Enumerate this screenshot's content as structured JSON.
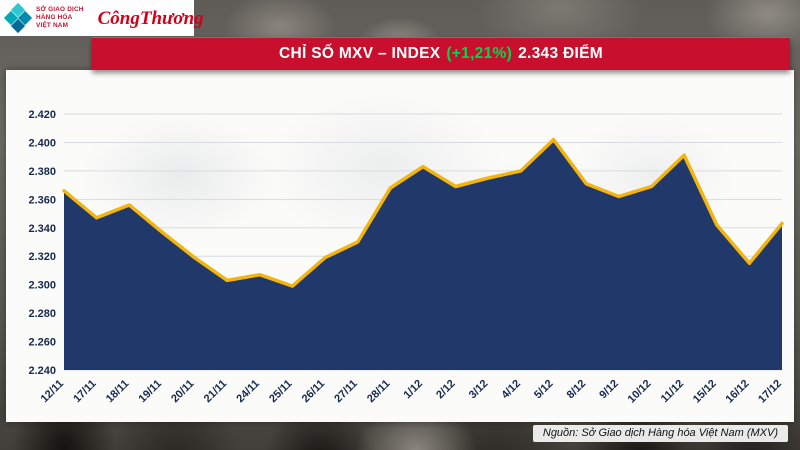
{
  "header": {
    "mxv_logo": {
      "lines": [
        "SỞ GIAO DỊCH",
        "HÀNG HÓA",
        "VIỆT NAM"
      ],
      "teal": "#00a9b7",
      "red": "#c8102e"
    },
    "congthuong_logo": "CôngThương",
    "banner": {
      "title": "CHỈ SỐ MXV – INDEX",
      "change": "(+1,21%)",
      "value": "2.343 ĐIỂM",
      "bg_color": "#c8102e",
      "change_color": "#00d84f"
    }
  },
  "chart_data": {
    "type": "area",
    "title": "CHỈ SỐ MXV – INDEX (+1,21%) 2.343 ĐIỂM",
    "x": [
      "12/11",
      "17/11",
      "18/11",
      "19/11",
      "20/11",
      "21/11",
      "24/11",
      "25/11",
      "26/11",
      "27/11",
      "28/11",
      "1/12",
      "2/12",
      "3/12",
      "4/12",
      "5/12",
      "8/12",
      "9/12",
      "10/12",
      "11/12",
      "15/12",
      "16/12",
      "17/12"
    ],
    "values": [
      2366,
      2347,
      2356,
      2337,
      2319,
      2303,
      2307,
      2299,
      2319,
      2330,
      2368,
      2383,
      2369,
      2375,
      2380,
      2402,
      2371,
      2362,
      2369,
      2391,
      2342,
      2315,
      2343
    ],
    "ylim": [
      2240,
      2420
    ],
    "ytick_step": 20,
    "ytick_labels": [
      "2.240",
      "2.260",
      "2.280",
      "2.300",
      "2.320",
      "2.340",
      "2.360",
      "2.380",
      "2.400",
      "2.420"
    ],
    "grid": true,
    "legend": "none",
    "fill_color": "#20396a",
    "line_color": "#f2b40d",
    "grid_color": "#d8dbe0",
    "axis_text_color": "#16284c"
  },
  "footer": {
    "source": "Nguồn: Sở Giao dịch Hàng hóa Việt Nam (MXV)"
  }
}
